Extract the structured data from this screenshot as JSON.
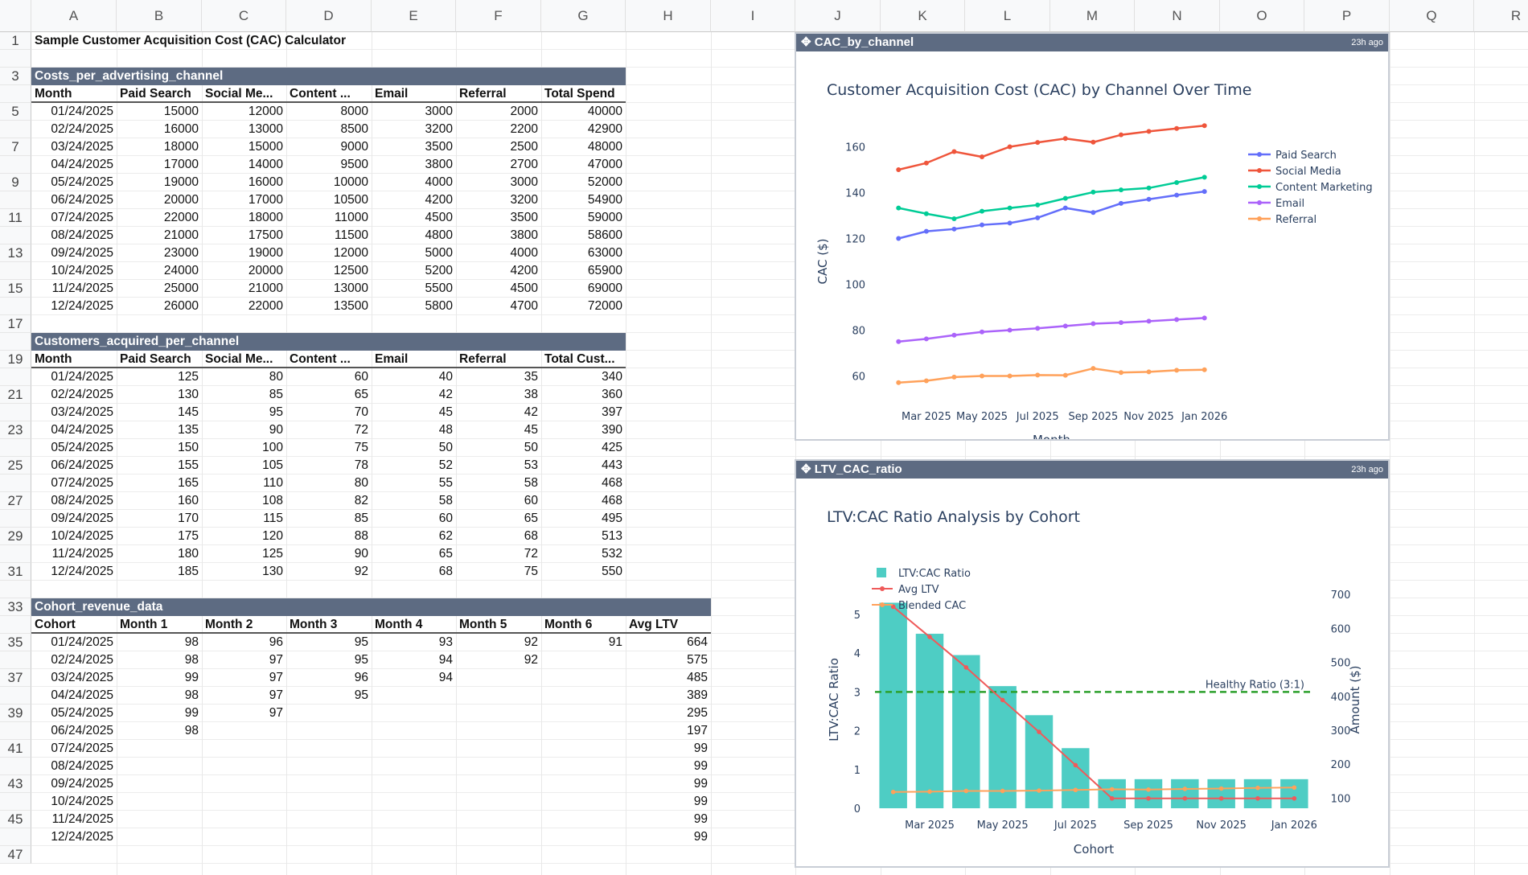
{
  "columns": [
    "A",
    "B",
    "C",
    "D",
    "E",
    "F",
    "G",
    "H",
    "I",
    "J",
    "K",
    "L",
    "M",
    "N",
    "O",
    "P",
    "Q",
    "R"
  ],
  "rows": [
    "1",
    "",
    "3",
    "",
    "5",
    "",
    "7",
    "",
    "9",
    "",
    "11",
    "",
    "13",
    "",
    "15",
    "",
    "17",
    "",
    "19",
    "",
    "21",
    "",
    "23",
    "",
    "25",
    "",
    "27",
    "",
    "29",
    "",
    "31",
    "",
    "33",
    "",
    "35",
    "",
    "37",
    "",
    "39",
    "",
    "41",
    "",
    "43",
    "",
    "45",
    "",
    "47"
  ],
  "sheet_title": "Sample Customer Acquisition Cost (CAC) Calculator",
  "costs": {
    "name": "Costs_per_advertising_channel",
    "headers": [
      "Month",
      "Paid Search",
      "Social Me...",
      "Content ...",
      "Email",
      "Referral",
      "Total Spend"
    ],
    "rows": [
      [
        "01/24/2025",
        "15000",
        "12000",
        "8000",
        "3000",
        "2000",
        "40000"
      ],
      [
        "02/24/2025",
        "16000",
        "13000",
        "8500",
        "3200",
        "2200",
        "42900"
      ],
      [
        "03/24/2025",
        "18000",
        "15000",
        "9000",
        "3500",
        "2500",
        "48000"
      ],
      [
        "04/24/2025",
        "17000",
        "14000",
        "9500",
        "3800",
        "2700",
        "47000"
      ],
      [
        "05/24/2025",
        "19000",
        "16000",
        "10000",
        "4000",
        "3000",
        "52000"
      ],
      [
        "06/24/2025",
        "20000",
        "17000",
        "10500",
        "4200",
        "3200",
        "54900"
      ],
      [
        "07/24/2025",
        "22000",
        "18000",
        "11000",
        "4500",
        "3500",
        "59000"
      ],
      [
        "08/24/2025",
        "21000",
        "17500",
        "11500",
        "4800",
        "3800",
        "58600"
      ],
      [
        "09/24/2025",
        "23000",
        "19000",
        "12000",
        "5000",
        "4000",
        "63000"
      ],
      [
        "10/24/2025",
        "24000",
        "20000",
        "12500",
        "5200",
        "4200",
        "65900"
      ],
      [
        "11/24/2025",
        "25000",
        "21000",
        "13000",
        "5500",
        "4500",
        "69000"
      ],
      [
        "12/24/2025",
        "26000",
        "22000",
        "13500",
        "5800",
        "4700",
        "72000"
      ]
    ]
  },
  "customers": {
    "name": "Customers_acquired_per_channel",
    "headers": [
      "Month",
      "Paid Search",
      "Social Me...",
      "Content ...",
      "Email",
      "Referral",
      "Total Cust..."
    ],
    "rows": [
      [
        "01/24/2025",
        "125",
        "80",
        "60",
        "40",
        "35",
        "340"
      ],
      [
        "02/24/2025",
        "130",
        "85",
        "65",
        "42",
        "38",
        "360"
      ],
      [
        "03/24/2025",
        "145",
        "95",
        "70",
        "45",
        "42",
        "397"
      ],
      [
        "04/24/2025",
        "135",
        "90",
        "72",
        "48",
        "45",
        "390"
      ],
      [
        "05/24/2025",
        "150",
        "100",
        "75",
        "50",
        "50",
        "425"
      ],
      [
        "06/24/2025",
        "155",
        "105",
        "78",
        "52",
        "53",
        "443"
      ],
      [
        "07/24/2025",
        "165",
        "110",
        "80",
        "55",
        "58",
        "468"
      ],
      [
        "08/24/2025",
        "160",
        "108",
        "82",
        "58",
        "60",
        "468"
      ],
      [
        "09/24/2025",
        "170",
        "115",
        "85",
        "60",
        "65",
        "495"
      ],
      [
        "10/24/2025",
        "175",
        "120",
        "88",
        "62",
        "68",
        "513"
      ],
      [
        "11/24/2025",
        "180",
        "125",
        "90",
        "65",
        "72",
        "532"
      ],
      [
        "12/24/2025",
        "185",
        "130",
        "92",
        "68",
        "75",
        "550"
      ]
    ]
  },
  "cohort": {
    "name": "Cohort_revenue_data",
    "headers": [
      "Cohort",
      "Month 1",
      "Month 2",
      "Month 3",
      "Month 4",
      "Month 5",
      "Month 6",
      "Avg LTV"
    ],
    "rows": [
      [
        "01/24/2025",
        "98",
        "96",
        "95",
        "93",
        "92",
        "91",
        "664"
      ],
      [
        "02/24/2025",
        "98",
        "97",
        "95",
        "94",
        "92",
        "",
        "575"
      ],
      [
        "03/24/2025",
        "99",
        "97",
        "96",
        "94",
        "",
        "",
        "485"
      ],
      [
        "04/24/2025",
        "98",
        "97",
        "95",
        "",
        "",
        "",
        "389"
      ],
      [
        "05/24/2025",
        "99",
        "97",
        "",
        "",
        "",
        "",
        "295"
      ],
      [
        "06/24/2025",
        "98",
        "",
        "",
        "",
        "",
        "",
        "197"
      ],
      [
        "07/24/2025",
        "",
        "",
        "",
        "",
        "",
        "",
        "99"
      ],
      [
        "08/24/2025",
        "",
        "",
        "",
        "",
        "",
        "",
        "99"
      ],
      [
        "09/24/2025",
        "",
        "",
        "",
        "",
        "",
        "",
        "99"
      ],
      [
        "10/24/2025",
        "",
        "",
        "",
        "",
        "",
        "",
        "99"
      ],
      [
        "11/24/2025",
        "",
        "",
        "",
        "",
        "",
        "",
        "99"
      ],
      [
        "12/24/2025",
        "",
        "",
        "",
        "",
        "",
        "",
        "99"
      ]
    ]
  },
  "panels": {
    "cac": {
      "name": "CAC_by_channel",
      "ago": "23h ago"
    },
    "ltv": {
      "name": "LTV_CAC_ratio",
      "ago": "23h ago"
    }
  },
  "chart_data": [
    {
      "type": "line",
      "title": "Customer Acquisition Cost (CAC) by Channel Over Time",
      "xlabel": "Month",
      "ylabel": "CAC ($)",
      "ylim": [
        50,
        170
      ],
      "yticks": [
        60,
        80,
        100,
        120,
        140,
        160
      ],
      "xticks": [
        "Mar 2025",
        "May 2025",
        "Jul 2025",
        "Sep 2025",
        "Nov 2025",
        "Jan 2026"
      ],
      "x": [
        1,
        2,
        3,
        4,
        5,
        6,
        7,
        8,
        9,
        10,
        11,
        12
      ],
      "xtick_positions": [
        2,
        4,
        6,
        8,
        10,
        12
      ],
      "series": [
        {
          "name": "Paid Search",
          "color": "#636efa",
          "values": [
            120,
            123.1,
            124.1,
            125.9,
            126.7,
            129,
            133.3,
            131.3,
            135.3,
            137.1,
            138.9,
            140.5
          ]
        },
        {
          "name": "Social Media",
          "color": "#ef553b",
          "values": [
            150,
            152.9,
            157.9,
            155.6,
            160,
            161.9,
            163.6,
            162,
            165.2,
            166.7,
            168,
            169.2
          ]
        },
        {
          "name": "Content Marketing",
          "color": "#00cc96",
          "values": [
            133.3,
            130.8,
            128.6,
            131.9,
            133.3,
            134.6,
            137.5,
            140.2,
            141.2,
            142,
            144.4,
            146.7
          ]
        },
        {
          "name": "Email",
          "color": "#ab63fa",
          "values": [
            75,
            76.2,
            77.8,
            79.2,
            80,
            80.8,
            81.8,
            82.8,
            83.3,
            83.9,
            84.6,
            85.3
          ]
        },
        {
          "name": "Referral",
          "color": "#ffa15a",
          "values": [
            57.1,
            57.9,
            59.5,
            60,
            60,
            60.4,
            60.3,
            63.3,
            61.5,
            61.8,
            62.5,
            62.7
          ]
        }
      ]
    },
    {
      "type": "bar",
      "title": "LTV:CAC Ratio Analysis by Cohort",
      "xlabel": "Cohort",
      "ylabel": "LTV:CAC Ratio",
      "y2label": "Amount ($)",
      "ylim": [
        0,
        5.6
      ],
      "y2lim": [
        70,
        710
      ],
      "yticks": [
        0,
        1,
        2,
        3,
        4,
        5
      ],
      "y2ticks": [
        100,
        200,
        300,
        400,
        500,
        600,
        700
      ],
      "xticks": [
        "Mar 2025",
        "May 2025",
        "Jul 2025",
        "Sep 2025",
        "Nov 2025",
        "Jan 2026"
      ],
      "xtick_positions": [
        2,
        4,
        6,
        8,
        10,
        12
      ],
      "x": [
        1,
        2,
        3,
        4,
        5,
        6,
        7,
        8,
        9,
        10,
        11,
        12
      ],
      "bar_color": "#4ecdc4",
      "threshold": {
        "value": 3,
        "label": "Healthy Ratio (3:1)",
        "color": "#2ca02c"
      },
      "legend": [
        "LTV:CAC Ratio",
        "Avg LTV",
        "Blended CAC"
      ],
      "series": [
        {
          "name": "LTV:CAC Ratio",
          "axis": "left",
          "values": [
            5.3,
            4.5,
            3.95,
            3.15,
            2.4,
            1.55,
            0.75,
            0.75,
            0.75,
            0.75,
            0.75,
            0.75
          ]
        },
        {
          "name": "Avg LTV",
          "axis": "right",
          "color": "#ef5a5a",
          "values": [
            664,
            575,
            485,
            389,
            295,
            197,
            99,
            99,
            99,
            99,
            99,
            99
          ]
        },
        {
          "name": "Blended CAC",
          "axis": "right",
          "color": "#ffa15a",
          "values": [
            118,
            119,
            121,
            121,
            122,
            124,
            126,
            125,
            127,
            128,
            130,
            131
          ]
        }
      ]
    }
  ]
}
